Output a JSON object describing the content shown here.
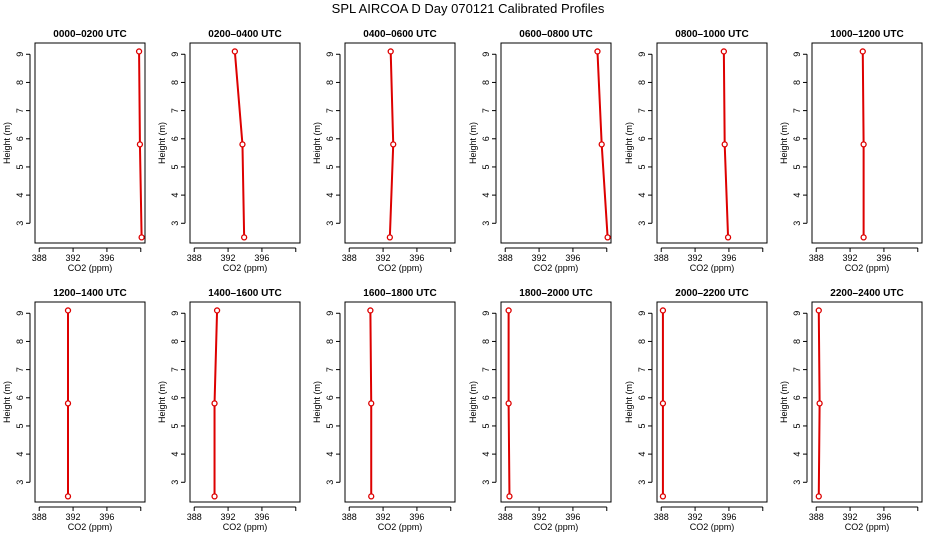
{
  "title": "SPL AIRCOA D  Day 070121  Calibrated Profiles",
  "chart_data": [
    {
      "type": "line",
      "title": "0000–0200 UTC",
      "xlabel": "CO2 (ppm)",
      "ylabel": "Height (m)",
      "xlim": [
        387.5,
        400.5
      ],
      "ylim": [
        2.3,
        9.4
      ],
      "x_ticks": [
        388,
        392,
        396
      ],
      "y_ticks": [
        3,
        4,
        5,
        6,
        7,
        8,
        9
      ],
      "series": [
        {
          "heights": [
            2.5,
            5.8,
            9.1
          ],
          "values": [
            400.1,
            399.9,
            399.8
          ]
        }
      ]
    },
    {
      "type": "line",
      "title": "0200–0400 UTC",
      "xlabel": "CO2 (ppm)",
      "ylabel": "Height (m)",
      "xlim": [
        387.5,
        400.5
      ],
      "ylim": [
        2.3,
        9.4
      ],
      "x_ticks": [
        388,
        392,
        396
      ],
      "y_ticks": [
        3,
        4,
        5,
        6,
        7,
        8,
        9
      ],
      "series": [
        {
          "heights": [
            2.5,
            5.8,
            9.1
          ],
          "values": [
            393.9,
            393.7,
            392.8
          ]
        }
      ]
    },
    {
      "type": "line",
      "title": "0400–0600 UTC",
      "xlabel": "CO2 (ppm)",
      "ylabel": "Height (m)",
      "xlim": [
        387.5,
        400.5
      ],
      "ylim": [
        2.3,
        9.4
      ],
      "x_ticks": [
        388,
        392,
        396
      ],
      "y_ticks": [
        3,
        4,
        5,
        6,
        7,
        8,
        9
      ],
      "series": [
        {
          "heights": [
            2.5,
            5.8,
            9.1
          ],
          "values": [
            392.8,
            393.2,
            392.9
          ]
        }
      ]
    },
    {
      "type": "line",
      "title": "0600–0800 UTC",
      "xlabel": "CO2 (ppm)",
      "ylabel": "Height (m)",
      "xlim": [
        387.5,
        400.5
      ],
      "ylim": [
        2.3,
        9.4
      ],
      "x_ticks": [
        388,
        392,
        396
      ],
      "y_ticks": [
        3,
        4,
        5,
        6,
        7,
        8,
        9
      ],
      "series": [
        {
          "heights": [
            2.5,
            5.8,
            9.1
          ],
          "values": [
            400.1,
            399.4,
            398.9
          ]
        }
      ]
    },
    {
      "type": "line",
      "title": "0800–1000 UTC",
      "xlabel": "CO2 (ppm)",
      "ylabel": "Height (m)",
      "xlim": [
        387.5,
        400.5
      ],
      "ylim": [
        2.3,
        9.4
      ],
      "x_ticks": [
        388,
        392,
        396
      ],
      "y_ticks": [
        3,
        4,
        5,
        6,
        7,
        8,
        9
      ],
      "series": [
        {
          "heights": [
            2.5,
            5.8,
            9.1
          ],
          "values": [
            395.9,
            395.5,
            395.4
          ]
        }
      ]
    },
    {
      "type": "line",
      "title": "1000–1200 UTC",
      "xlabel": "CO2 (ppm)",
      "ylabel": "Height (m)",
      "xlim": [
        387.5,
        400.5
      ],
      "ylim": [
        2.3,
        9.4
      ],
      "x_ticks": [
        388,
        392,
        396
      ],
      "y_ticks": [
        3,
        4,
        5,
        6,
        7,
        8,
        9
      ],
      "series": [
        {
          "heights": [
            2.5,
            5.8,
            9.1
          ],
          "values": [
            393.6,
            393.6,
            393.5
          ]
        }
      ]
    },
    {
      "type": "line",
      "title": "1200–1400 UTC",
      "xlabel": "CO2 (ppm)",
      "ylabel": "Height (m)",
      "xlim": [
        387.5,
        400.5
      ],
      "ylim": [
        2.3,
        9.4
      ],
      "x_ticks": [
        388,
        392,
        396
      ],
      "y_ticks": [
        3,
        4,
        5,
        6,
        7,
        8,
        9
      ],
      "series": [
        {
          "heights": [
            2.5,
            5.8,
            9.1
          ],
          "values": [
            391.4,
            391.4,
            391.4
          ]
        }
      ]
    },
    {
      "type": "line",
      "title": "1400–1600 UTC",
      "xlabel": "CO2 (ppm)",
      "ylabel": "Height (m)",
      "xlim": [
        387.5,
        400.5
      ],
      "ylim": [
        2.3,
        9.4
      ],
      "x_ticks": [
        388,
        392,
        396
      ],
      "y_ticks": [
        3,
        4,
        5,
        6,
        7,
        8,
        9
      ],
      "series": [
        {
          "heights": [
            2.5,
            5.8,
            9.1
          ],
          "values": [
            390.4,
            390.4,
            390.7
          ]
        }
      ]
    },
    {
      "type": "line",
      "title": "1600–1800 UTC",
      "xlabel": "CO2 (ppm)",
      "ylabel": "Height (m)",
      "xlim": [
        387.5,
        400.5
      ],
      "ylim": [
        2.3,
        9.4
      ],
      "x_ticks": [
        388,
        392,
        396
      ],
      "y_ticks": [
        3,
        4,
        5,
        6,
        7,
        8,
        9
      ],
      "series": [
        {
          "heights": [
            2.5,
            5.8,
            9.1
          ],
          "values": [
            390.6,
            390.6,
            390.5
          ]
        }
      ]
    },
    {
      "type": "line",
      "title": "1800–2000 UTC",
      "xlabel": "CO2 (ppm)",
      "ylabel": "Height (m)",
      "xlim": [
        387.5,
        400.5
      ],
      "ylim": [
        2.3,
        9.4
      ],
      "x_ticks": [
        388,
        392,
        396
      ],
      "y_ticks": [
        3,
        4,
        5,
        6,
        7,
        8,
        9
      ],
      "series": [
        {
          "heights": [
            2.5,
            5.8,
            9.1
          ],
          "values": [
            388.5,
            388.4,
            388.4
          ]
        }
      ]
    },
    {
      "type": "line",
      "title": "2000–2200 UTC",
      "xlabel": "CO2 (ppm)",
      "ylabel": "Height (m)",
      "xlim": [
        387.5,
        400.5
      ],
      "ylim": [
        2.3,
        9.4
      ],
      "x_ticks": [
        388,
        392,
        396
      ],
      "y_ticks": [
        3,
        4,
        5,
        6,
        7,
        8,
        9
      ],
      "series": [
        {
          "heights": [
            2.5,
            5.8,
            9.1
          ],
          "values": [
            388.2,
            388.2,
            388.2
          ]
        }
      ]
    },
    {
      "type": "line",
      "title": "2200–2400 UTC",
      "xlabel": "CO2 (ppm)",
      "ylabel": "Height (m)",
      "xlim": [
        387.5,
        400.5
      ],
      "ylim": [
        2.3,
        9.4
      ],
      "x_ticks": [
        388,
        392,
        396
      ],
      "y_ticks": [
        3,
        4,
        5,
        6,
        7,
        8,
        9
      ],
      "series": [
        {
          "heights": [
            2.5,
            5.8,
            9.1
          ],
          "values": [
            388.3,
            388.4,
            388.3
          ]
        }
      ]
    }
  ],
  "colors": {
    "series": "#dd0000",
    "axis": "#000000"
  }
}
